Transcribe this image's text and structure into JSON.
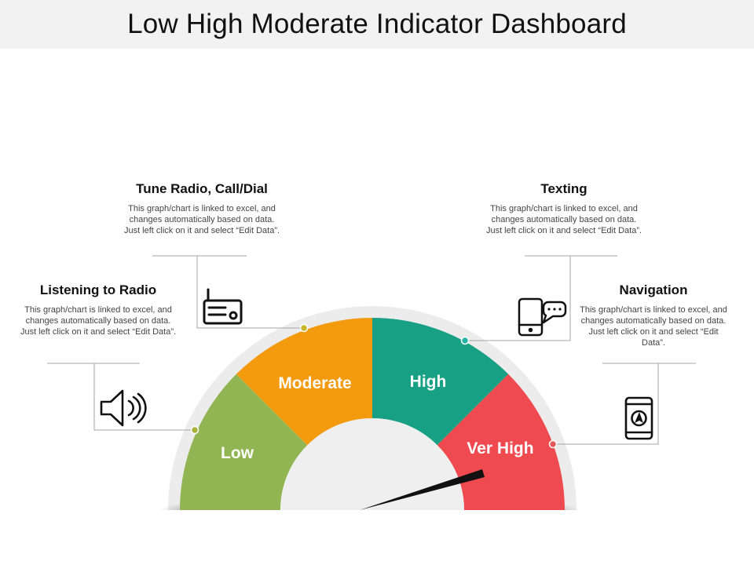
{
  "page": {
    "title": "Low High Moderate Indicator Dashboard"
  },
  "gauge": {
    "segments": [
      {
        "label": "Low",
        "color": "#92b553"
      },
      {
        "label": "Moderate",
        "color": "#f39a0e"
      },
      {
        "label": "High",
        "color": "#18a085"
      },
      {
        "label": "Ver High",
        "color": "#ef4a4f"
      }
    ],
    "needle_color": "#111111"
  },
  "callouts": {
    "radio_call": {
      "title": "Tune Radio, Call/Dial",
      "text": "This graph/chart is linked to excel, and changes automatically based on data. Just left click on it and select “Edit Data”.",
      "icon": "radio-icon",
      "dot_color": "#c8b62c"
    },
    "texting": {
      "title": "Texting",
      "text": "This graph/chart is linked to excel, and changes automatically based on data. Just left click on it and select “Edit Data”.",
      "icon": "phone-chat-icon",
      "dot_color": "#24b3a5"
    },
    "listening": {
      "title": "Listening to Radio",
      "text": "This graph/chart is linked to excel, and changes automatically based on data. Just left click on it and select “Edit Data”.",
      "icon": "speaker-icon",
      "dot_color": "#a8b23a"
    },
    "navigation": {
      "title": "Navigation",
      "text": "This graph/chart is linked to excel, and changes automatically based on data. Just left click on it and select “Edit Data”.",
      "icon": "navigation-tablet-icon",
      "dot_color": "#e45a5a"
    }
  }
}
